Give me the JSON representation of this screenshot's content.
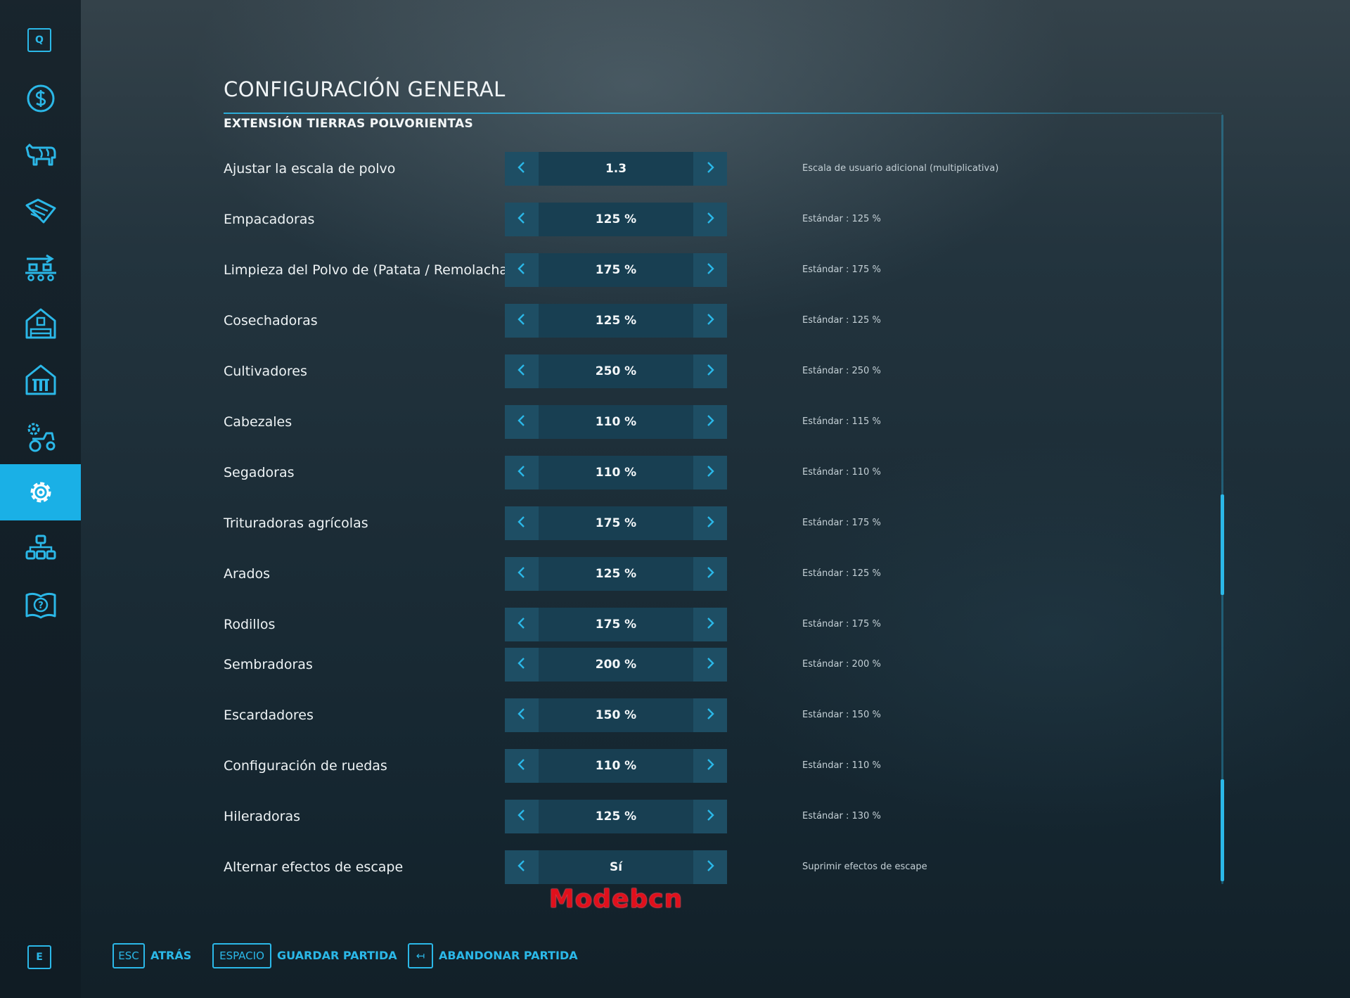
{
  "sidebar": {
    "top_key": "Q",
    "bottom_key": "E",
    "items": [
      {
        "icon": "dollar-icon",
        "active": false
      },
      {
        "icon": "cow-icon",
        "active": false
      },
      {
        "icon": "contracts-icon",
        "active": false
      },
      {
        "icon": "production-icon",
        "active": false
      },
      {
        "icon": "farmhouse-icon",
        "active": false
      },
      {
        "icon": "animal-barn-icon",
        "active": false
      },
      {
        "icon": "vehicle-settings-icon",
        "active": false
      },
      {
        "icon": "gear-icon",
        "active": true
      },
      {
        "icon": "hierarchy-icon",
        "active": false
      },
      {
        "icon": "help-book-icon",
        "active": false
      }
    ]
  },
  "header": {
    "title": "CONFIGURACIÓN GENERAL",
    "subtitle": "EXTENSIÓN TIERRAS POLVORIENTAS"
  },
  "settings": [
    {
      "label": "Ajustar la escala de polvo",
      "value": "1.3",
      "desc": "Escala de usuario adicional (multiplicativa)"
    },
    {
      "label": "Empacadoras",
      "value": "125 %",
      "desc": "Estándar : 125 %"
    },
    {
      "label": "Limpieza del Polvo de (Patata / Remolacha)",
      "value": "175 %",
      "desc": "Estándar : 175 %"
    },
    {
      "label": "Cosechadoras",
      "value": "125 %",
      "desc": "Estándar : 125 %"
    },
    {
      "label": "Cultivadores",
      "value": "250 %",
      "desc": "Estándar : 250 %"
    },
    {
      "label": "Cabezales",
      "value": "110 %",
      "desc": "Estándar : 115 %"
    },
    {
      "label": "Segadoras",
      "value": "110 %",
      "desc": "Estándar : 110 %"
    },
    {
      "label": "Trituradoras agrícolas",
      "value": "175 %",
      "desc": "Estándar : 175 %"
    },
    {
      "label": "Arados",
      "value": "125 %",
      "desc": "Estándar : 125 %"
    },
    {
      "label": "Rodillos",
      "value": "175 %",
      "desc": "Estándar : 175 %"
    },
    {
      "label": "Sembradoras",
      "value": "200 %",
      "desc": "Estándar : 200 %"
    },
    {
      "label": "Escardadores",
      "value": "150 %",
      "desc": "Estándar : 150 %"
    },
    {
      "label": "Configuración de ruedas",
      "value": "110 %",
      "desc": "Estándar : 110 %"
    },
    {
      "label": "Hileradoras",
      "value": "125 %",
      "desc": "Estándar : 130 %"
    },
    {
      "label": "Alternar efectos de escape",
      "value": "Sí",
      "desc": "Suprimir efectos de escape"
    }
  ],
  "watermark": "Modebcn",
  "footer": {
    "back_key": "ESC",
    "back_label": "ATRÁS",
    "save_key": "ESPACIO",
    "save_label": "GUARDAR PARTIDA",
    "quit_key": "↤",
    "quit_label": "ABANDONAR PARTIDA"
  },
  "colors": {
    "accent": "#2bb8e8",
    "active_nav": "#1ab0e6",
    "watermark": "#e0101c"
  }
}
